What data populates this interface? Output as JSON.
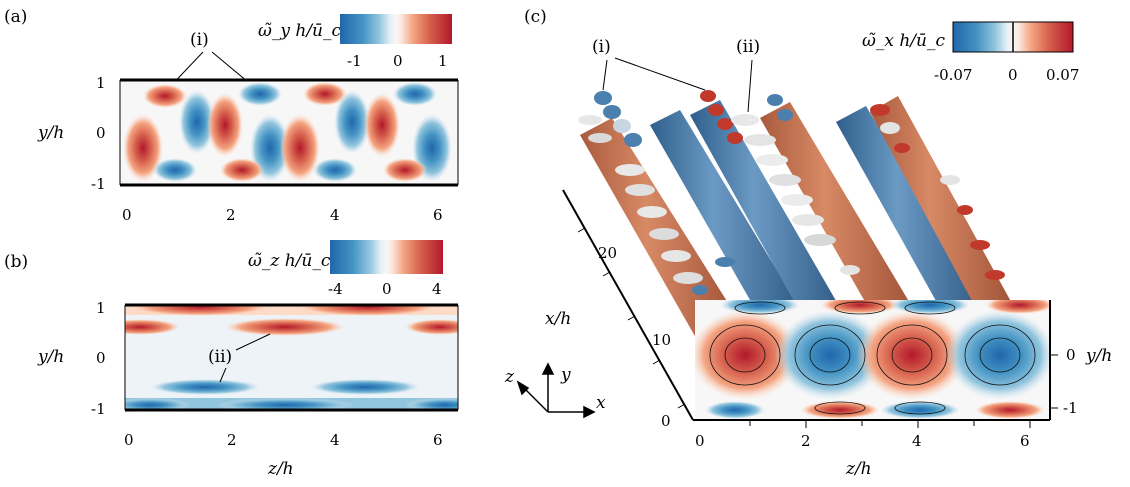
{
  "panel_a": {
    "label": "(a)",
    "colorbar_title": "ω̃_y h/ū_c",
    "colorbar_ticks": [
      "-1",
      "0",
      "1"
    ],
    "annotation": "(i)",
    "ylabel": "y/h",
    "xticks": [
      "0",
      "2",
      "4",
      "6"
    ],
    "yticks": [
      "1",
      "0",
      "-1"
    ]
  },
  "panel_b": {
    "label": "(b)",
    "colorbar_title": "ω̃_z h/ū_c",
    "colorbar_ticks": [
      "-4",
      "0",
      "4"
    ],
    "annotation": "(ii)",
    "ylabel": "y/h",
    "xlabel": "z/h",
    "xticks": [
      "0",
      "2",
      "4",
      "6"
    ],
    "yticks": [
      "1",
      "0",
      "-1"
    ]
  },
  "panel_c": {
    "label": "(c)",
    "colorbar_title": "ω̃_x h/ū_c",
    "colorbar_ticks": [
      "-0.07",
      "0",
      "0.07"
    ],
    "annotation_i": "(i)",
    "annotation_ii": "(ii)",
    "xlabel": "z/h",
    "xaxis_label": "x/h",
    "right_ylabel": "y/h",
    "xticks": [
      "0",
      "2",
      "4",
      "6"
    ],
    "xaxis_ticks": [
      "0",
      "10",
      "20"
    ],
    "right_yticks": [
      "0",
      "-1"
    ],
    "triad": {
      "z": "z",
      "y": "y",
      "x": "x"
    }
  },
  "colors": {
    "blue_dark": "#2166ac",
    "blue_mid": "#4393c3",
    "blue_light": "#92c5de",
    "blue_pale": "#d1e5f0",
    "neutral": "#f7f7f7",
    "red_pale": "#fddbc7",
    "red_light": "#f4a582",
    "red_mid": "#d6604d",
    "red_dark": "#b2182b",
    "tube_red": "#c8734f",
    "tube_blue": "#4a7fae"
  }
}
